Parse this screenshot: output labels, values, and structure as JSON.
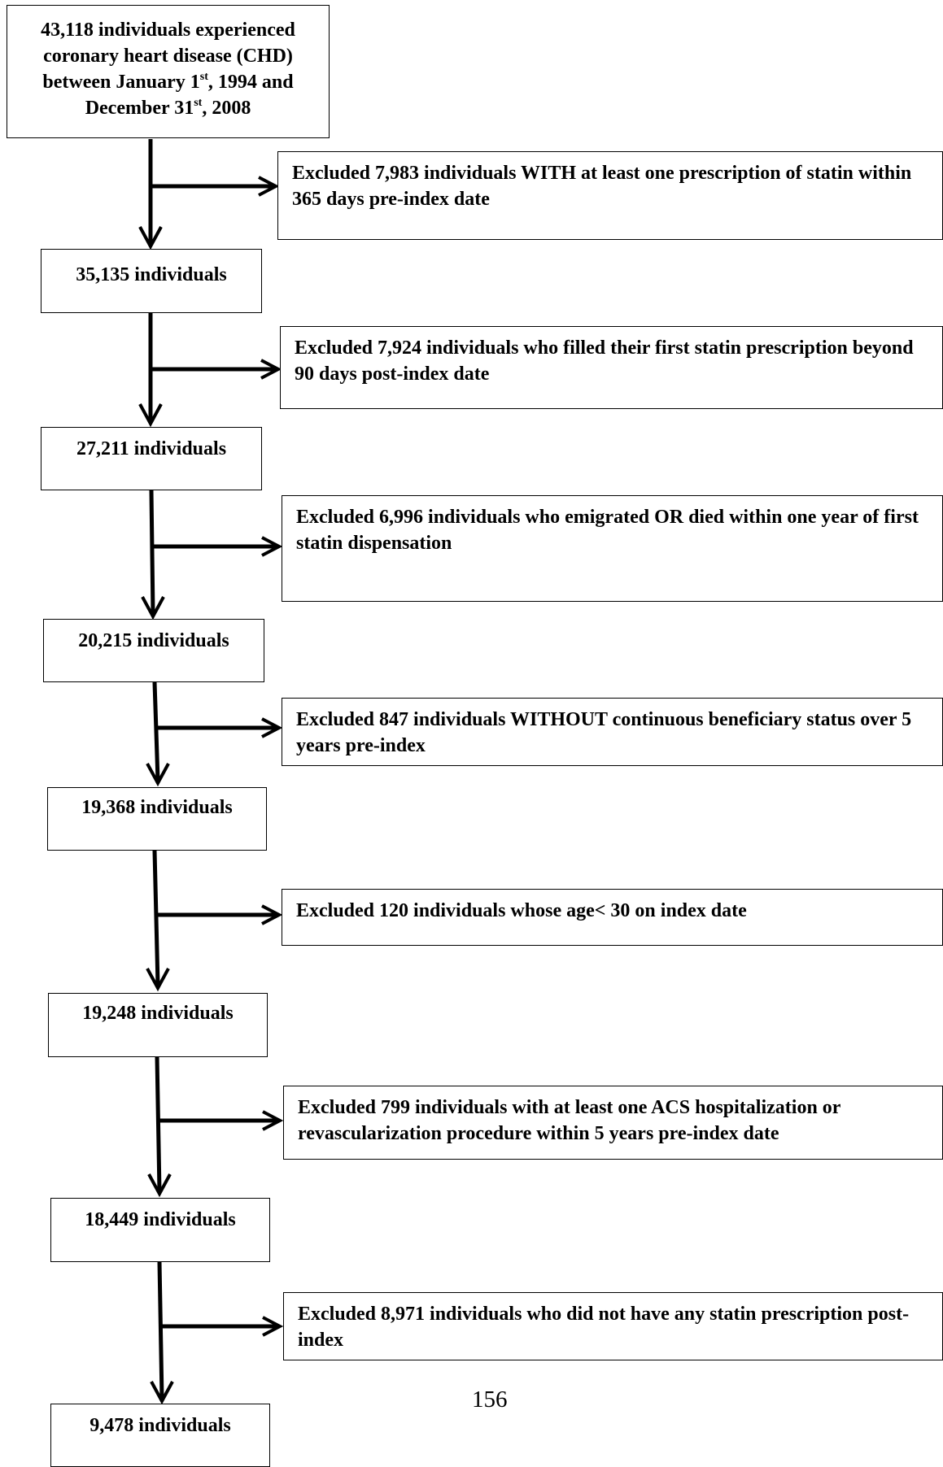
{
  "flowchart": {
    "start": {
      "line1": "43,118 individuals experienced",
      "line2": "coronary heart disease (CHD)",
      "line3_pre": "between January 1",
      "line3_sup": "st",
      "line3_post": ", 1994 and",
      "line4_pre": "December 31",
      "line4_sup": "st",
      "line4_post": ", 2008"
    },
    "steps": [
      {
        "exclusion": "Excluded 7,983 individuals WITH at least one prescription of statin within 365 days pre-index date",
        "remaining": "35,135 individuals"
      },
      {
        "exclusion": "Excluded 7,924 individuals who filled their first statin prescription beyond 90 days post-index date",
        "remaining": "27,211 individuals"
      },
      {
        "exclusion": "Excluded 6,996 individuals who emigrated OR died within one year of first statin dispensation",
        "remaining": "20,215 individuals"
      },
      {
        "exclusion": "Excluded 847 individuals WITHOUT continuous beneficiary status over 5 years pre-index",
        "remaining": "19,368 individuals"
      },
      {
        "exclusion": "Excluded 120 individuals whose age< 30 on index date",
        "remaining": "19,248 individuals"
      },
      {
        "exclusion": "Excluded 799 individuals with at least one ACS hospitalization or revascularization procedure within 5 years pre-index date",
        "remaining": "18,449 individuals"
      },
      {
        "exclusion": "Excluded 8,971 individuals who did not have any statin prescription post-index",
        "remaining": "9,478 individuals"
      }
    ]
  },
  "page_number": "156"
}
